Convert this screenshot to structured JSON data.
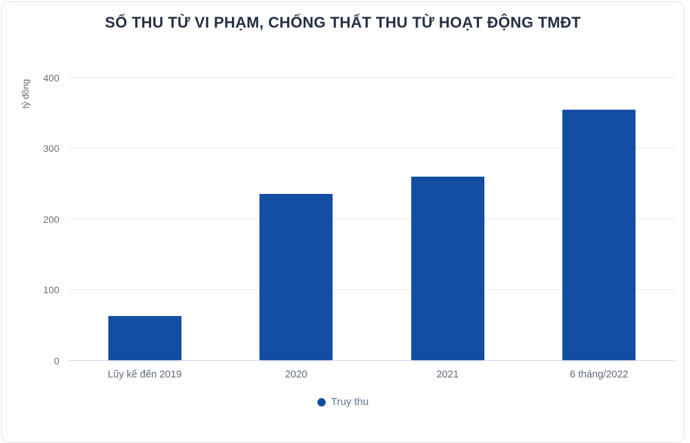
{
  "card": {
    "background": "#ffffff",
    "border_color": "#e3e3e3"
  },
  "chart_data": {
    "type": "bar",
    "title": "SỐ THU TỪ VI PHẠM, CHỐNG THẤT THU TỪ HOẠT ĐỘNG TMĐT",
    "ylabel": "tỷ đồng",
    "xlabel": "",
    "categories": [
      "Lũy kế đến 2019",
      "2020",
      "2021",
      "6 tháng/2022"
    ],
    "series": [
      {
        "name": "Truy thu",
        "values": [
          63,
          236,
          260,
          355
        ]
      }
    ],
    "ylim": [
      0,
      400
    ],
    "yticks": [
      0,
      100,
      200,
      300,
      400
    ],
    "grid": true,
    "legend_position": "bottom",
    "colors": {
      "bar": "#134ea4",
      "title": "#242f42",
      "ytick_label": "#6b6b6b",
      "xtick_label": "#5f6b7c",
      "legend_label": "#5f7495",
      "y_axis_title": "#666666",
      "gridline": "#e6e6e6",
      "axis_line": "#ccd6eb"
    }
  }
}
